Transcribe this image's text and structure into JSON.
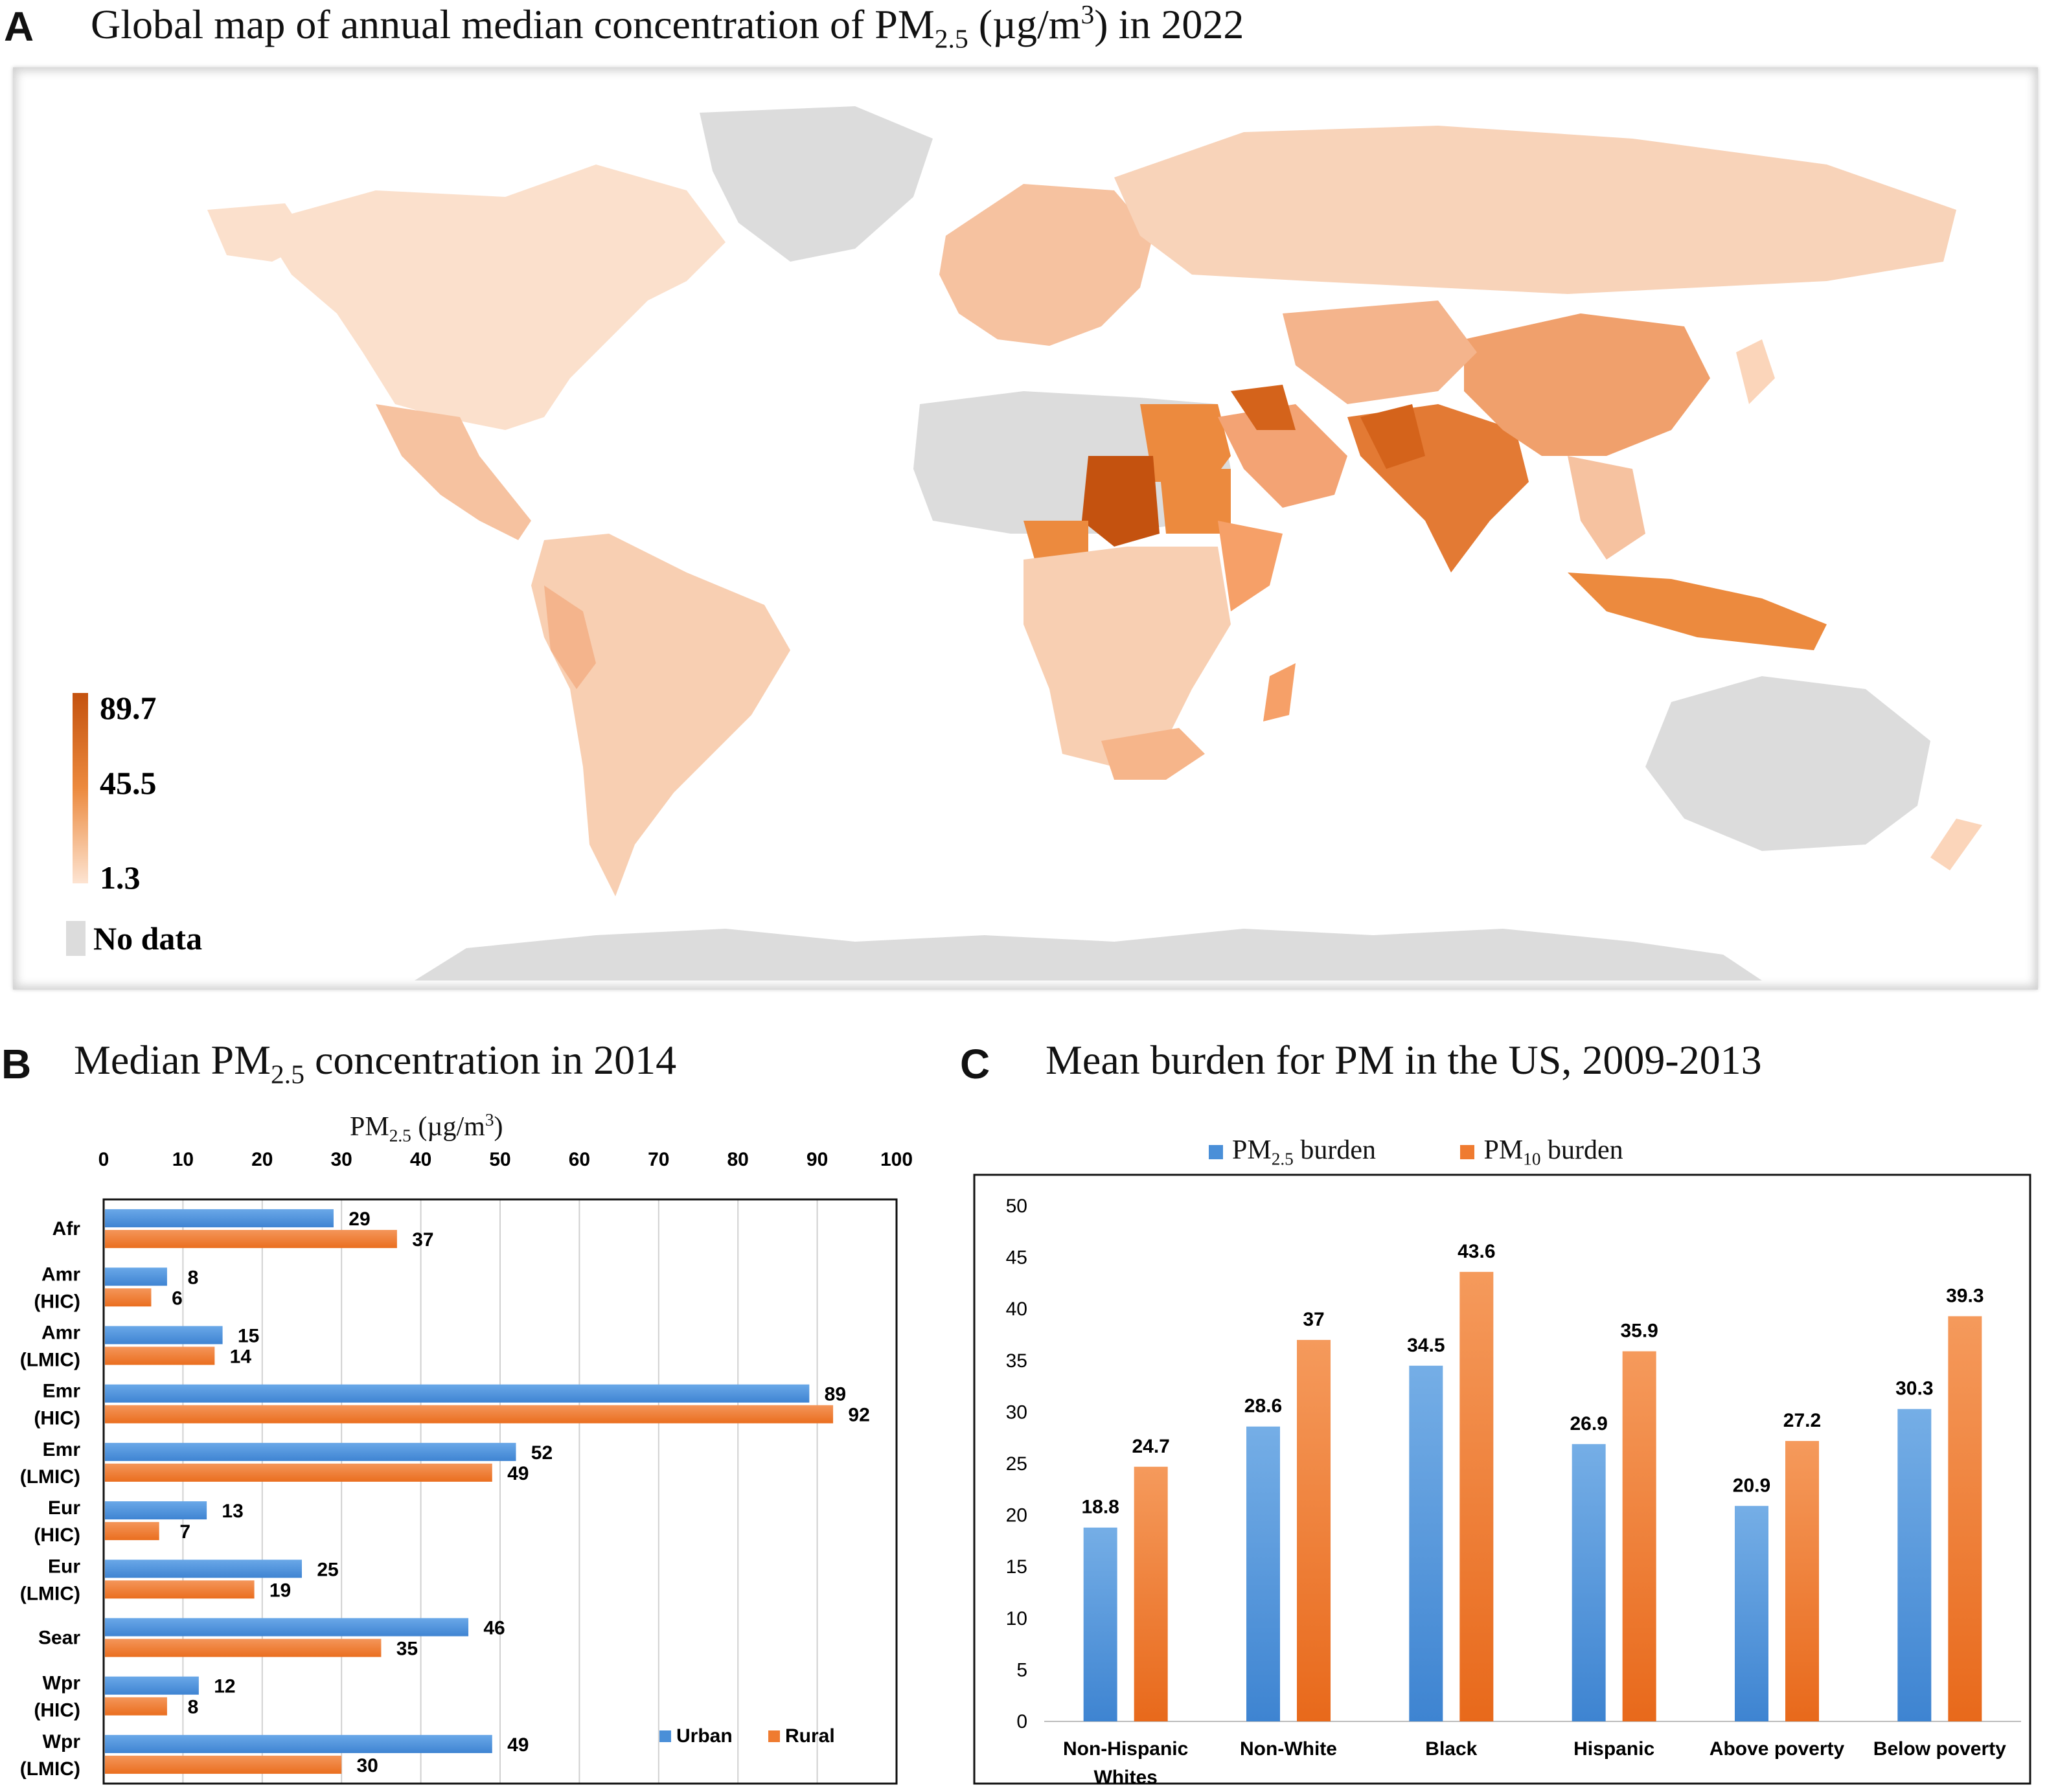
{
  "panel_a": {
    "letter": "A",
    "title_pre": "Global map of annual median concentration of PM",
    "title_sub": "2.5",
    "title_mid": " (µg/m",
    "title_sup": "3",
    "title_post": ") in 2022",
    "legend": {
      "max": "89.7",
      "mid": "45.5",
      "min": "1.3",
      "nodata": "No data"
    },
    "colors": {
      "high": "#c4520f",
      "mid": "#ec8a3e",
      "low": "#fbe0cc",
      "nodata": "#dcdcdc"
    }
  },
  "panel_b": {
    "letter": "B",
    "title_pre": "Median PM",
    "title_sub": "2.5",
    "title_post": " concentration in 2014",
    "axis_title_pre": "PM",
    "axis_title_sub": "2.5",
    "axis_title_mid": " (µg/m",
    "axis_title_sup": "3",
    "axis_title_post": ")"
  },
  "panel_c": {
    "letter": "C",
    "title": "Mean burden for PM in the US, 2009-2013",
    "legend_pm25_pre": "PM",
    "legend_pm25_sub": "2.5",
    "legend_pm25_post": " burden",
    "legend_pm10_pre": "PM",
    "legend_pm10_sub": "10",
    "legend_pm10_post": " burden"
  },
  "chart_data": [
    {
      "type": "bar",
      "orientation": "horizontal",
      "categories": [
        [
          "Afr"
        ],
        [
          "Amr",
          "(HIC)"
        ],
        [
          "Amr",
          "(LMIC)"
        ],
        [
          "Emr",
          "(HIC)"
        ],
        [
          "Emr",
          "(LMIC)"
        ],
        [
          "Eur",
          "(HIC)"
        ],
        [
          "Eur",
          "(LMIC)"
        ],
        [
          "Sear"
        ],
        [
          "Wpr",
          "(HIC)"
        ],
        [
          "Wpr",
          "(LMIC)"
        ]
      ],
      "series": [
        {
          "name": "Urban",
          "values": [
            29,
            8,
            15,
            89,
            52,
            13,
            25,
            46,
            12,
            49
          ],
          "color": "#4a8fd8"
        },
        {
          "name": "Rural",
          "values": [
            37,
            6,
            14,
            92,
            49,
            7,
            19,
            35,
            8,
            30
          ],
          "color": "#ef7b30"
        }
      ],
      "xlim": [
        0,
        100
      ],
      "xticks": [
        "0",
        "10",
        "20",
        "30",
        "40",
        "50",
        "60",
        "70",
        "80",
        "90",
        "100"
      ],
      "grid": true,
      "legend": "bottom-right"
    },
    {
      "type": "bar",
      "categories": [
        [
          "Non-Hispanic",
          "Whites"
        ],
        [
          "Non-White"
        ],
        [
          "Black"
        ],
        [
          "Hispanic"
        ],
        [
          "Above poverty"
        ],
        [
          "Below poverty"
        ]
      ],
      "series": [
        {
          "name": "PM2.5 burden",
          "values": [
            18.8,
            28.6,
            34.5,
            26.9,
            20.9,
            30.3
          ],
          "color": "#4a8fd8"
        },
        {
          "name": "PM10 burden",
          "values": [
            24.7,
            37,
            43.6,
            35.9,
            27.2,
            39.3
          ],
          "color": "#ef7b30"
        }
      ],
      "ylim": [
        0,
        50
      ],
      "yticks": [
        "0",
        "5",
        "10",
        "15",
        "20",
        "25",
        "30",
        "35",
        "40",
        "45",
        "50"
      ],
      "grid": false,
      "legend": "top"
    }
  ]
}
